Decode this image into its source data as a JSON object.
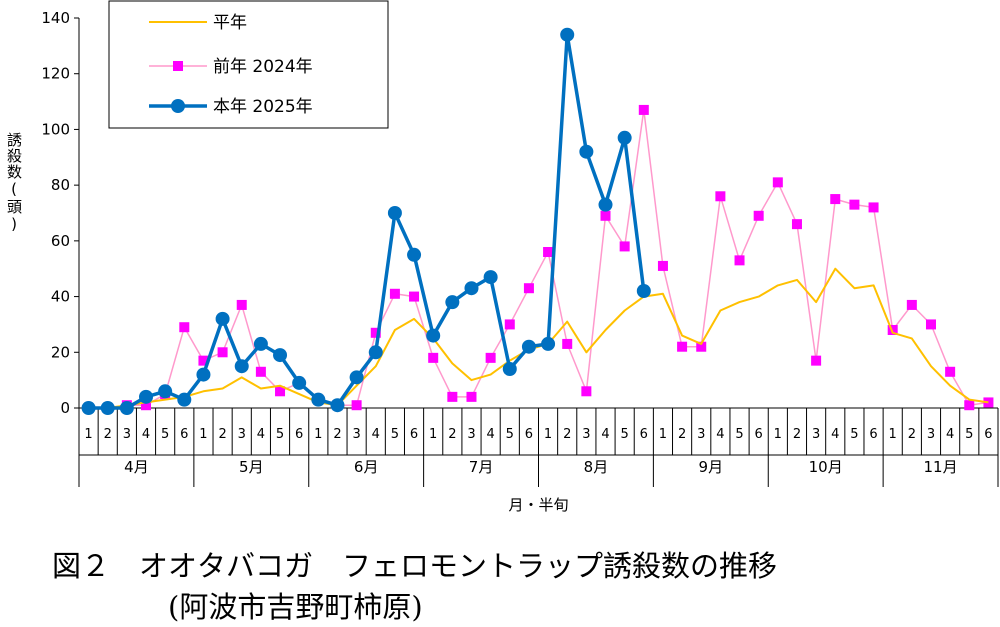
{
  "chart_data": {
    "type": "line",
    "ylabel": "誘殺数(頭)",
    "xlabel": "月・半旬",
    "ylim": [
      0,
      140
    ],
    "yticks": [
      0,
      20,
      40,
      60,
      80,
      100,
      120,
      140
    ],
    "grid": false,
    "legend_position": "top-left",
    "months": [
      "4月",
      "5月",
      "6月",
      "7月",
      "8月",
      "9月",
      "10月",
      "11月"
    ],
    "pentads": [
      "1",
      "2",
      "3",
      "4",
      "5",
      "6"
    ],
    "series": [
      {
        "name": "平年",
        "color": "#ffc000",
        "marker": "none",
        "values": [
          0,
          0,
          1,
          2,
          3,
          4,
          6,
          7,
          11,
          7,
          8,
          5,
          2,
          1,
          8,
          15,
          28,
          32,
          25,
          16,
          10,
          12,
          17,
          21,
          23,
          31,
          20,
          28,
          35,
          40,
          41,
          26,
          23,
          35,
          38,
          40,
          44,
          46,
          38,
          50,
          43,
          44,
          27,
          25,
          15,
          8,
          3,
          2
        ]
      },
      {
        "name": "前年 2024年",
        "color": "#ff99cc",
        "marker_color": "#ff00ff",
        "marker": "square",
        "values": [
          0,
          0,
          1,
          1,
          5,
          29,
          17,
          20,
          37,
          13,
          6,
          9,
          3,
          1,
          1,
          27,
          41,
          40,
          18,
          4,
          4,
          18,
          30,
          43,
          56,
          23,
          6,
          69,
          58,
          107,
          51,
          22,
          22,
          76,
          53,
          69,
          81,
          66,
          17,
          75,
          73,
          72,
          28,
          37,
          30,
          13,
          1,
          2
        ]
      },
      {
        "name": "本年 2025年",
        "color": "#0070c0",
        "marker": "circle",
        "values": [
          0,
          0,
          0,
          4,
          6,
          3,
          12,
          32,
          15,
          23,
          19,
          9,
          3,
          1,
          11,
          20,
          70,
          55,
          26,
          38,
          43,
          47,
          14,
          22,
          23,
          134,
          92,
          73,
          97,
          42,
          null,
          null,
          null,
          null,
          null,
          null,
          null,
          null,
          null,
          null,
          null,
          null,
          null,
          null,
          null,
          null,
          null,
          null
        ]
      }
    ]
  },
  "caption": {
    "title": "図２　オオタバコガ　フェロモントラップ誘殺数の推移",
    "subtitle": "(阿波市吉野町柿原)"
  }
}
